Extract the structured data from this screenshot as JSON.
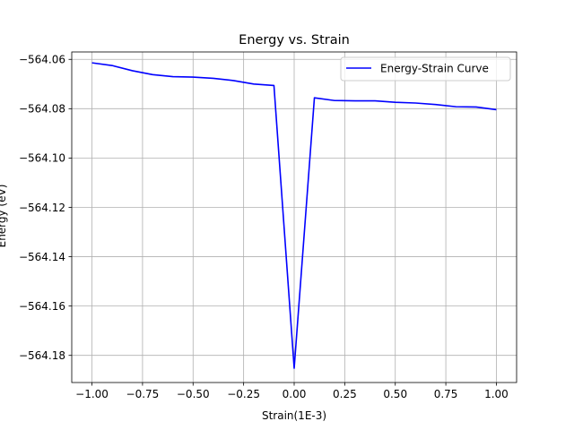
{
  "chart_data": {
    "type": "line",
    "title": "Energy vs. Strain",
    "xlabel": "Strain(1E-3)",
    "ylabel": "Energy (eV)",
    "xlim": [
      -1.1,
      1.1
    ],
    "ylim": [
      -564.191,
      -564.057
    ],
    "xticks": [
      -1.0,
      -0.75,
      -0.5,
      -0.25,
      0.0,
      0.25,
      0.5,
      0.75,
      1.0
    ],
    "xtick_labels": [
      "−1.00",
      "−0.75",
      "−0.50",
      "−0.25",
      "0.00",
      "0.25",
      "0.50",
      "0.75",
      "1.00"
    ],
    "yticks": [
      -564.06,
      -564.08,
      -564.1,
      -564.12,
      -564.14,
      -564.16,
      -564.18
    ],
    "ytick_labels": [
      "−564.06",
      "−564.08",
      "−564.10",
      "−564.12",
      "−564.14",
      "−564.16",
      "−564.18"
    ],
    "grid": true,
    "legend_position": "top-right",
    "series": [
      {
        "name": "Energy-Strain Curve",
        "color": "#0000ff",
        "x": [
          -1.0,
          -0.9,
          -0.8,
          -0.7,
          -0.6,
          -0.5,
          -0.4,
          -0.3,
          -0.2,
          -0.1,
          0.0,
          0.1,
          0.2,
          0.3,
          0.4,
          0.5,
          0.6,
          0.7,
          0.8,
          0.9,
          1.0
        ],
        "y": [
          -564.0614,
          -564.0625,
          -564.0646,
          -564.0662,
          -564.067,
          -564.0672,
          -564.0677,
          -564.0686,
          -564.07,
          -564.0706,
          -564.1852,
          -564.0756,
          -564.0767,
          -564.0768,
          -564.0768,
          -564.0774,
          -564.0777,
          -564.0783,
          -564.0792,
          -564.0793,
          -564.0804
        ]
      }
    ]
  }
}
